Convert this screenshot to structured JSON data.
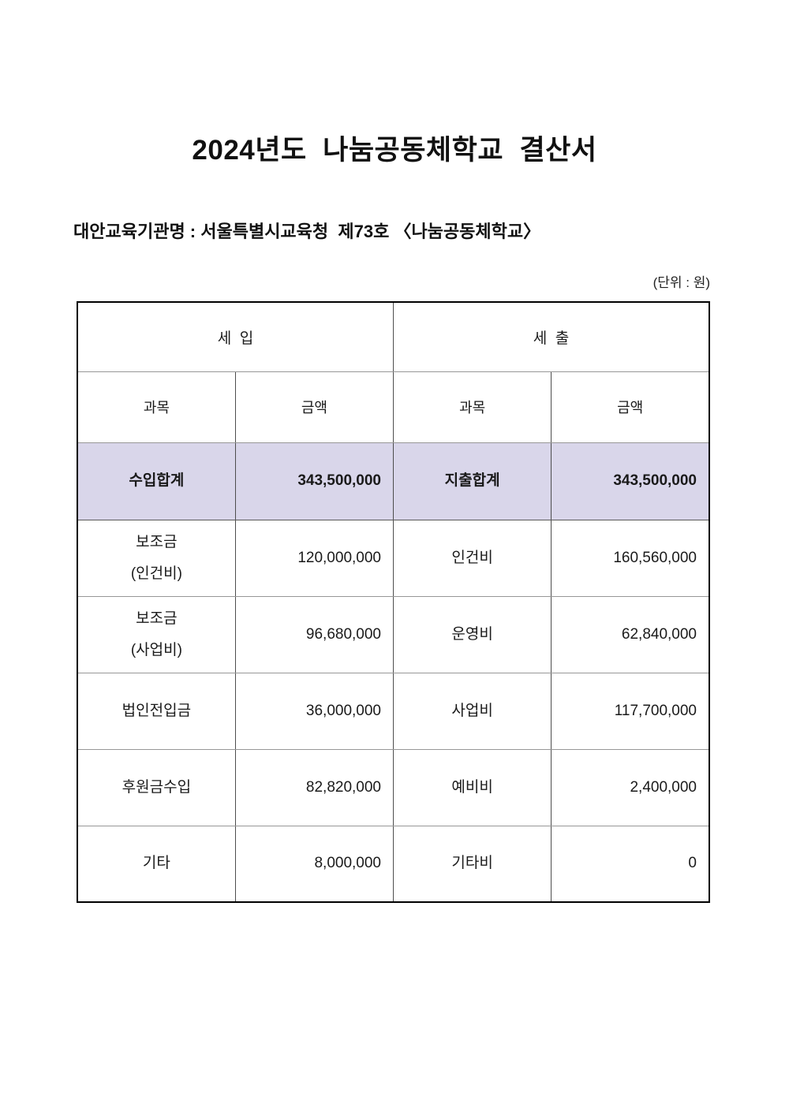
{
  "document": {
    "title": "2024년도  나눔공동체학교  결산서",
    "org_line": "대안교육기관명 : 서울특별시교육청  제73호 〈나눔공동체학교〉",
    "unit_note": "(단위 : 원)"
  },
  "table": {
    "highlight_color": "#d9d6ea",
    "group_headers": {
      "revenue": "세  입",
      "expense": "세  출"
    },
    "col_headers": {
      "category": "과목",
      "amount": "금액"
    },
    "total_row": {
      "r_label": "수입합계",
      "r_amount": "343,500,000",
      "e_label": "지출합계",
      "e_amount": "343,500,000"
    },
    "rows": [
      {
        "r_label": "보조금\n(인건비)",
        "r_amount": "120,000,000",
        "e_label": "인건비",
        "e_amount": "160,560,000"
      },
      {
        "r_label": "보조금\n(사업비)",
        "r_amount": "96,680,000",
        "e_label": "운영비",
        "e_amount": "62,840,000"
      },
      {
        "r_label": "법인전입금",
        "r_amount": "36,000,000",
        "e_label": "사업비",
        "e_amount": "117,700,000"
      },
      {
        "r_label": "후원금수입",
        "r_amount": "82,820,000",
        "e_label": "예비비",
        "e_amount": "2,400,000"
      },
      {
        "r_label": "기타",
        "r_amount": "8,000,000",
        "e_label": "기타비",
        "e_amount": "0"
      }
    ]
  }
}
